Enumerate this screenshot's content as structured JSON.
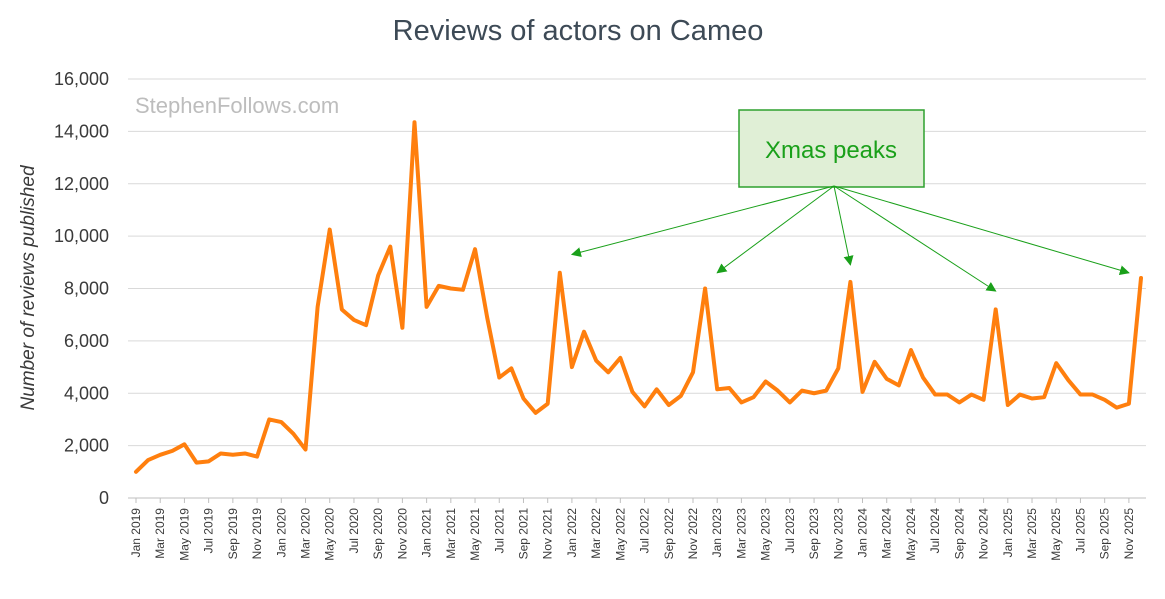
{
  "chart_data": {
    "type": "line",
    "title": "Reviews of actors on Cameo",
    "xlabel": "",
    "ylabel": "Number of reviews published",
    "ylim": [
      0,
      16000
    ],
    "yticks": [
      0,
      2000,
      4000,
      6000,
      8000,
      10000,
      12000,
      14000,
      16000
    ],
    "ytick_labels": [
      "0",
      "2,000",
      "4,000",
      "6,000",
      "8,000",
      "10,000",
      "12,000",
      "14,000",
      "16,000"
    ],
    "grid": true,
    "watermark": "StephenFollows.com",
    "tick_labels": [
      "Jan 2019",
      "Mar 2019",
      "May 2019",
      "Jul 2019",
      "Sep 2019",
      "Nov 2019",
      "Jan 2020",
      "Mar 2020",
      "May 2020",
      "Jul 2020",
      "Sep 2020",
      "Nov 2020",
      "Jan 2021",
      "Mar 2021",
      "May 2021",
      "Jul 2021",
      "Sep 2021",
      "Nov 2021",
      "Jan 2022",
      "Mar 2022",
      "May 2022",
      "Jul 2022",
      "Sep 2022",
      "Nov 2022",
      "Jan 2023",
      "Mar 2023",
      "May 2023",
      "Jul 2023",
      "Sep 2023",
      "Nov 2023",
      "Jan 2024",
      "Mar 2024",
      "May 2024",
      "Jul 2024",
      "Sep 2024",
      "Nov 2024",
      "Jan 2025",
      "Mar 2025",
      "May 2025",
      "Jul 2025",
      "Sep 2025",
      "Nov 2025"
    ],
    "color": "#ff7f0e",
    "series": [
      {
        "name": "Reviews",
        "values": [
          1000,
          1450,
          1650,
          1800,
          2050,
          1350,
          1400,
          1700,
          1650,
          1700,
          1580,
          3000,
          2900,
          2450,
          1850,
          7300,
          10250,
          7200,
          6800,
          6600,
          8500,
          9600,
          6500,
          14350,
          7300,
          8100,
          8000,
          7950,
          9500,
          6900,
          4600,
          4950,
          3800,
          3250,
          3600,
          8600,
          5000,
          6350,
          5250,
          4800,
          5350,
          4050,
          3500,
          4150,
          3550,
          3900,
          4800,
          8000,
          4150,
          4200,
          3650,
          3850,
          4450,
          4100,
          3650,
          4100,
          4000,
          4100,
          4950,
          8250,
          4050,
          5200,
          4550,
          4300,
          5650,
          4600,
          3950,
          3950,
          3650,
          3950,
          3750,
          7200,
          3550,
          3950,
          3800,
          3850,
          5150,
          4500,
          3950,
          3950,
          3750,
          3450,
          3600,
          8400
        ]
      }
    ],
    "annotation": {
      "text": "Xmas peaks",
      "box_color": "#e0efd6",
      "border_color": "#2ea02e",
      "arrow_color": "#1aa01a",
      "targets": [
        {
          "x_index": 36,
          "y": 9300
        },
        {
          "x_index": 48,
          "y": 8600
        },
        {
          "x_index": 59,
          "y": 8900
        },
        {
          "x_index": 71,
          "y": 7900
        },
        {
          "x_index": 82,
          "y": 8600
        }
      ]
    }
  }
}
